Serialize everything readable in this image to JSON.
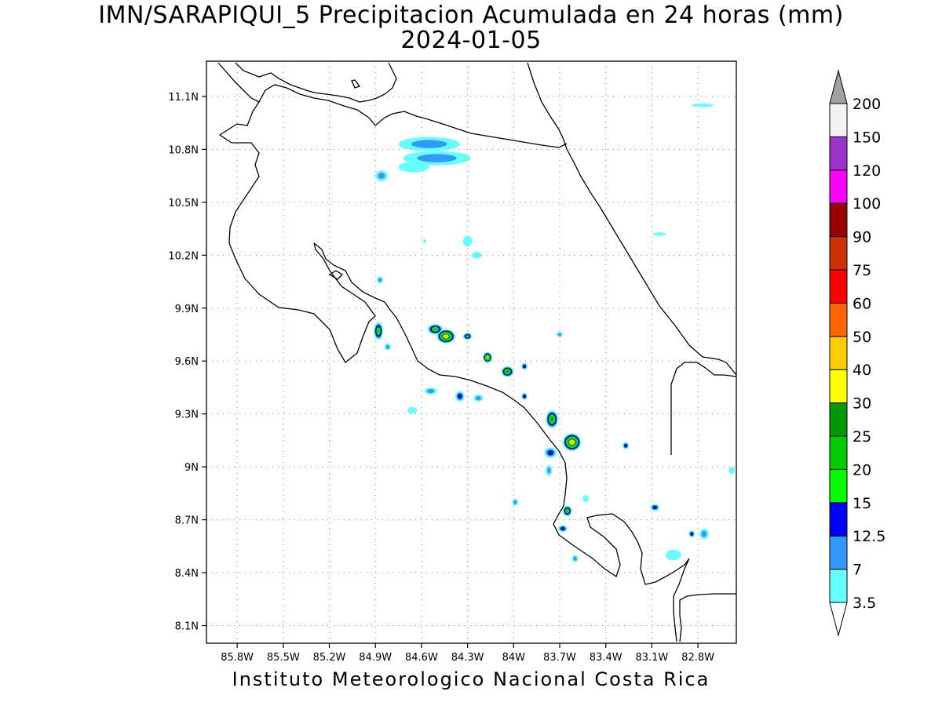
{
  "title": "IMN/SARAPIQUI_5 Precipitacion Acumulada en 24 horas (mm)",
  "date": "2024-01-05",
  "footer": "Instituto Meteorologico Nacional Costa Rica",
  "map": {
    "lon_range": [
      -86.0,
      -82.55
    ],
    "lat_range": [
      8.0,
      11.3
    ],
    "lon_ticks": [
      "85.8W",
      "85.5W",
      "85.2W",
      "84.9W",
      "84.6W",
      "84.3W",
      "84W",
      "83.7W",
      "83.4W",
      "83.1W",
      "82.8W"
    ],
    "lon_tick_values": [
      -85.8,
      -85.5,
      -85.2,
      -84.9,
      -84.6,
      -84.3,
      -84.0,
      -83.7,
      -83.4,
      -83.1,
      -82.8
    ],
    "lat_ticks": [
      "11.1N",
      "10.8N",
      "10.5N",
      "10.2N",
      "9.9N",
      "9.6N",
      "9.3N",
      "9N",
      "8.7N",
      "8.4N",
      "8.1N"
    ],
    "lat_tick_values": [
      11.1,
      10.8,
      10.5,
      10.2,
      9.9,
      9.6,
      9.3,
      9.0,
      8.7,
      8.4,
      8.1
    ],
    "grid": "dotted"
  },
  "colorbar": {
    "levels": [
      "3.5",
      "7",
      "12.5",
      "15",
      "20",
      "25",
      "30",
      "40",
      "50",
      "60",
      "75",
      "90",
      "100",
      "120",
      "150",
      "200"
    ],
    "colors": [
      "#66ffff",
      "#3399ff",
      "#0000ff",
      "#00ff00",
      "#00cc00",
      "#009900",
      "#ffff00",
      "#ffcc00",
      "#ff6600",
      "#ff0000",
      "#cc3300",
      "#990000",
      "#ff00ff",
      "#9933cc",
      "#f2f2f2"
    ],
    "over_color": "#a0a0a0",
    "under_color": "#ffffff"
  },
  "precip_cells": [
    {
      "lon": -84.55,
      "lat": 10.83,
      "rx": 0.2,
      "ry": 0.04,
      "level": 1
    },
    {
      "lon": -84.5,
      "lat": 10.75,
      "rx": 0.22,
      "ry": 0.04,
      "level": 1
    },
    {
      "lon": -84.65,
      "lat": 10.7,
      "rx": 0.1,
      "ry": 0.03,
      "level": 0
    },
    {
      "lon": -84.86,
      "lat": 10.65,
      "rx": 0.04,
      "ry": 0.03,
      "level": 1
    },
    {
      "lon": -84.58,
      "lat": 10.28,
      "rx": 0.01,
      "ry": 0.01,
      "level": 0
    },
    {
      "lon": -84.3,
      "lat": 10.28,
      "rx": 0.03,
      "ry": 0.03,
      "level": 0
    },
    {
      "lon": -84.24,
      "lat": 10.2,
      "rx": 0.03,
      "ry": 0.02,
      "level": 0
    },
    {
      "lon": -84.87,
      "lat": 10.06,
      "rx": 0.02,
      "ry": 0.02,
      "level": 1
    },
    {
      "lon": -84.88,
      "lat": 9.77,
      "rx": 0.03,
      "ry": 0.05,
      "level": 4
    },
    {
      "lon": -84.82,
      "lat": 9.68,
      "rx": 0.02,
      "ry": 0.02,
      "level": 1
    },
    {
      "lon": -84.51,
      "lat": 9.78,
      "rx": 0.05,
      "ry": 0.03,
      "level": 4
    },
    {
      "lon": -84.44,
      "lat": 9.74,
      "rx": 0.06,
      "ry": 0.04,
      "level": 7
    },
    {
      "lon": -84.3,
      "lat": 9.74,
      "rx": 0.03,
      "ry": 0.02,
      "level": 3
    },
    {
      "lon": -84.17,
      "lat": 9.62,
      "rx": 0.03,
      "ry": 0.03,
      "level": 6
    },
    {
      "lon": -84.04,
      "lat": 9.54,
      "rx": 0.04,
      "ry": 0.03,
      "level": 5
    },
    {
      "lon": -83.93,
      "lat": 9.57,
      "rx": 0.02,
      "ry": 0.02,
      "level": 2
    },
    {
      "lon": -84.54,
      "lat": 9.43,
      "rx": 0.04,
      "ry": 0.02,
      "level": 1
    },
    {
      "lon": -84.35,
      "lat": 9.4,
      "rx": 0.03,
      "ry": 0.03,
      "level": 2
    },
    {
      "lon": -84.23,
      "lat": 9.39,
      "rx": 0.03,
      "ry": 0.02,
      "level": 1
    },
    {
      "lon": -83.93,
      "lat": 9.4,
      "rx": 0.02,
      "ry": 0.02,
      "level": 2
    },
    {
      "lon": -83.75,
      "lat": 9.27,
      "rx": 0.04,
      "ry": 0.05,
      "level": 5
    },
    {
      "lon": -83.62,
      "lat": 9.14,
      "rx": 0.06,
      "ry": 0.05,
      "level": 7
    },
    {
      "lon": -83.76,
      "lat": 9.08,
      "rx": 0.04,
      "ry": 0.03,
      "level": 2
    },
    {
      "lon": -83.77,
      "lat": 8.98,
      "rx": 0.02,
      "ry": 0.03,
      "level": 1
    },
    {
      "lon": -83.99,
      "lat": 8.8,
      "rx": 0.02,
      "ry": 0.02,
      "level": 1
    },
    {
      "lon": -83.65,
      "lat": 8.75,
      "rx": 0.03,
      "ry": 0.03,
      "level": 4
    },
    {
      "lon": -83.68,
      "lat": 8.65,
      "rx": 0.03,
      "ry": 0.02,
      "level": 2
    },
    {
      "lon": -83.27,
      "lat": 9.12,
      "rx": 0.02,
      "ry": 0.02,
      "level": 2
    },
    {
      "lon": -83.08,
      "lat": 8.77,
      "rx": 0.03,
      "ry": 0.02,
      "level": 2
    },
    {
      "lon": -82.96,
      "lat": 8.5,
      "rx": 0.05,
      "ry": 0.03,
      "level": 0
    },
    {
      "lon": -82.84,
      "lat": 8.62,
      "rx": 0.02,
      "ry": 0.02,
      "level": 2
    },
    {
      "lon": -82.76,
      "lat": 8.62,
      "rx": 0.03,
      "ry": 0.03,
      "level": 1
    },
    {
      "lon": -83.6,
      "lat": 8.48,
      "rx": 0.02,
      "ry": 0.02,
      "level": 1
    },
    {
      "lon": -83.53,
      "lat": 8.82,
      "rx": 0.02,
      "ry": 0.02,
      "level": 0
    },
    {
      "lon": -83.7,
      "lat": 9.75,
      "rx": 0.02,
      "ry": 0.015,
      "level": 1
    },
    {
      "lon": -84.66,
      "lat": 9.32,
      "rx": 0.03,
      "ry": 0.02,
      "level": 0
    },
    {
      "lon": -83.05,
      "lat": 10.32,
      "rx": 0.04,
      "ry": 0.01,
      "level": 0
    },
    {
      "lon": -82.77,
      "lat": 11.05,
      "rx": 0.07,
      "ry": 0.01,
      "level": 0
    },
    {
      "lon": -82.58,
      "lat": 8.98,
      "rx": 0.02,
      "ry": 0.02,
      "level": 0
    }
  ]
}
